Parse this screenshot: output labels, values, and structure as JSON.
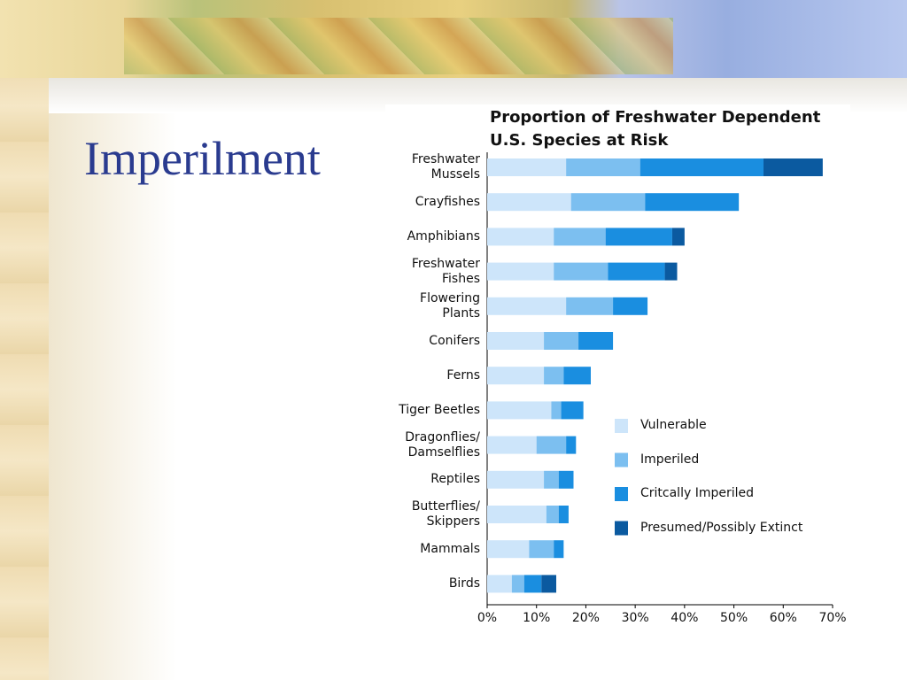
{
  "slide_title": "Imperilment",
  "chart_data": {
    "type": "stacked-barh",
    "title": "Proportion of Freshwater Dependent\nU.S. Species at Risk",
    "categories": [
      "Freshwater\nMussels",
      "Crayfishes",
      "Amphibians",
      "Freshwater\nFishes",
      "Flowering\nPlants",
      "Conifers",
      "Ferns",
      "Tiger Beetles",
      "Dragonflies/\nDamselflies",
      "Reptiles",
      "Butterflies/\nSkippers",
      "Mammals",
      "Birds"
    ],
    "series": [
      {
        "name": "Vulnerable",
        "color": "#cde5fa",
        "values": [
          16,
          17,
          13.5,
          13.5,
          16,
          11.5,
          11.5,
          13,
          10,
          11.5,
          12,
          8.5,
          5
        ]
      },
      {
        "name": "Imperiled",
        "color": "#7cbff0",
        "values": [
          15,
          15,
          10.5,
          11,
          9.5,
          7,
          4,
          2,
          6,
          3,
          2.5,
          5,
          2.5
        ]
      },
      {
        "name": "Critcally Imperiled",
        "color": "#1a8ee0",
        "values": [
          25,
          19,
          13.5,
          11.5,
          7,
          7,
          5.5,
          4.5,
          2,
          3,
          2,
          2,
          3.5
        ]
      },
      {
        "name": "Presumed/Possibly Extinct",
        "color": "#0b5aa0",
        "values": [
          12,
          0,
          2.5,
          2.5,
          0,
          0,
          0,
          0,
          0,
          0,
          0,
          0,
          3
        ]
      }
    ],
    "xlim": [
      0,
      70
    ],
    "xticks": [
      {
        "value": 0,
        "label": "0%"
      },
      {
        "value": 10,
        "label": "10%"
      },
      {
        "value": 20,
        "label": "20%"
      },
      {
        "value": 30,
        "label": "30%"
      },
      {
        "value": 40,
        "label": "40%"
      },
      {
        "value": 50,
        "label": "50%"
      },
      {
        "value": 60,
        "label": "60%"
      },
      {
        "value": 70,
        "label": "70%"
      }
    ],
    "legend": "lower right"
  }
}
